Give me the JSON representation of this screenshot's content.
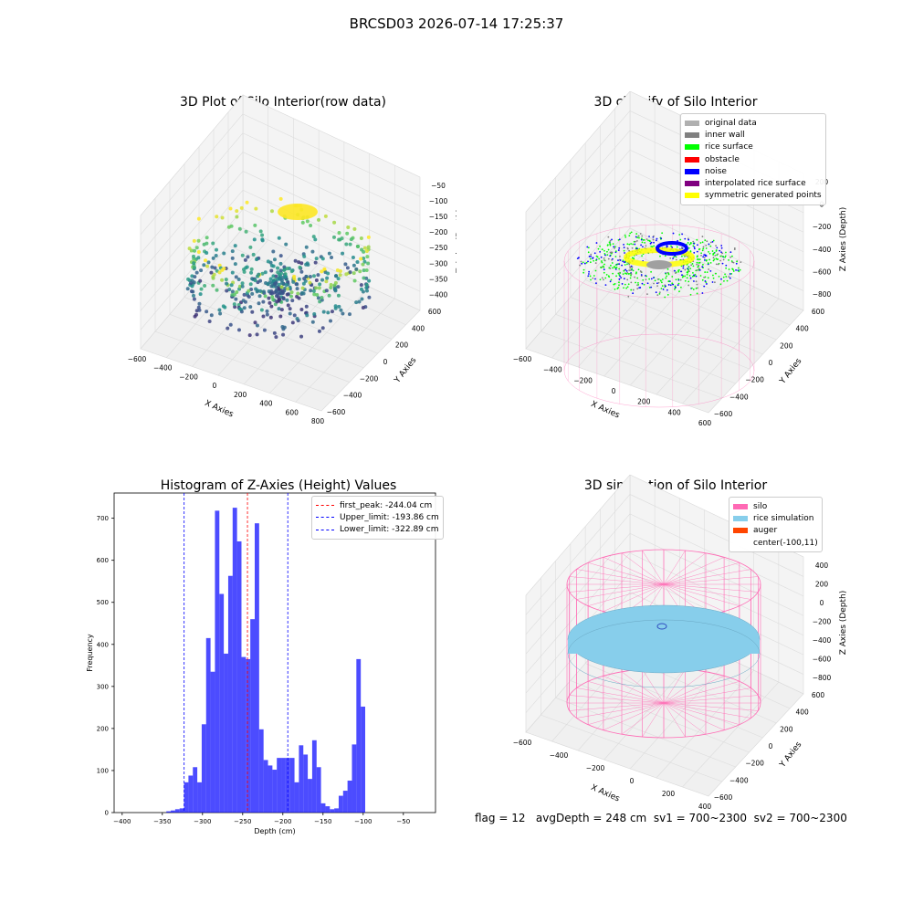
{
  "suptitle": "BRCSD03 2026-07-14 17:25:37",
  "status_text": "flag = 12   avgDepth = 248 cm  sv1 = 700~2300  sv2 = 700~2300",
  "chart_data": [
    {
      "type": "scatter",
      "title": "3D Plot of Silo Interior(row data)",
      "xlabel": "X Axies",
      "ylabel": "Y Axies",
      "zlabel": "Z Axies (Depth)",
      "x_ticks": [
        "−600",
        "−400",
        "−200",
        "0",
        "200",
        "400",
        "600",
        "800"
      ],
      "y_ticks": [
        "−600",
        "−400",
        "−200",
        "0",
        "200",
        "400",
        "600"
      ],
      "z_ticks": [
        "−50",
        "−100",
        "−150",
        "−200",
        "−250",
        "−300",
        "−350",
        "−400"
      ],
      "colormap": "viridis",
      "points_description_only": true
    },
    {
      "type": "scatter",
      "title": "3D classify of Silo Interior",
      "xlabel": "X Axies",
      "ylabel": "Y Axies",
      "zlabel": "Z Axies (Depth)",
      "x_ticks": [
        "−600",
        "−400",
        "−200",
        "0",
        "200",
        "400",
        "600"
      ],
      "y_ticks": [
        "−600",
        "−400",
        "−200",
        "0",
        "200",
        "400",
        "600"
      ],
      "z_ticks": [
        "200",
        "0",
        "−200",
        "−400",
        "−600",
        "−800"
      ],
      "legend": [
        {
          "label": "original data",
          "color": "#b0b0b0"
        },
        {
          "label": "inner wall",
          "color": "#808080"
        },
        {
          "label": "rice surface",
          "color": "#00ff00"
        },
        {
          "label": "obstacle",
          "color": "#ff0000"
        },
        {
          "label": "noise",
          "color": "#0000ff"
        },
        {
          "label": "interpolated rice surface",
          "color": "#800080"
        },
        {
          "label": "symmetric generated points",
          "color": "#ffff00"
        }
      ]
    },
    {
      "type": "bar",
      "title": "Histogram of Z-Axies (Height) Values",
      "xlabel": "Depth (cm)",
      "ylabel": "Frequency",
      "xlim": [
        -410,
        -10
      ],
      "ylim": [
        0,
        760
      ],
      "x_ticks": [
        -400,
        -350,
        -300,
        -250,
        -200,
        -150,
        -100,
        -50
      ],
      "y_ticks": [
        0,
        100,
        200,
        300,
        400,
        500,
        600,
        700
      ],
      "bin_width": 5.5,
      "bars": [
        {
          "x": -345,
          "value": 3
        },
        {
          "x": -339.5,
          "value": 5
        },
        {
          "x": -334,
          "value": 8
        },
        {
          "x": -328.5,
          "value": 10
        },
        {
          "x": -323,
          "value": 72
        },
        {
          "x": -317.5,
          "value": 88
        },
        {
          "x": -312,
          "value": 108
        },
        {
          "x": -306.5,
          "value": 72
        },
        {
          "x": -301,
          "value": 210
        },
        {
          "x": -295.5,
          "value": 415
        },
        {
          "x": -290,
          "value": 335
        },
        {
          "x": -284.5,
          "value": 718
        },
        {
          "x": -279,
          "value": 520
        },
        {
          "x": -273.5,
          "value": 378
        },
        {
          "x": -268,
          "value": 563
        },
        {
          "x": -262.5,
          "value": 725
        },
        {
          "x": -257,
          "value": 645
        },
        {
          "x": -251.5,
          "value": 370
        },
        {
          "x": -246,
          "value": 365
        },
        {
          "x": -240.5,
          "value": 460
        },
        {
          "x": -235,
          "value": 688
        },
        {
          "x": -229.5,
          "value": 198
        },
        {
          "x": -224,
          "value": 125
        },
        {
          "x": -218.5,
          "value": 112
        },
        {
          "x": -213,
          "value": 102
        },
        {
          "x": -207.5,
          "value": 130
        },
        {
          "x": -202,
          "value": 130
        },
        {
          "x": -196.5,
          "value": 130
        },
        {
          "x": -191,
          "value": 130
        },
        {
          "x": -185.5,
          "value": 72
        },
        {
          "x": -180,
          "value": 160
        },
        {
          "x": -174.5,
          "value": 138
        },
        {
          "x": -169,
          "value": 80
        },
        {
          "x": -163.5,
          "value": 172
        },
        {
          "x": -158,
          "value": 108
        },
        {
          "x": -152.5,
          "value": 22
        },
        {
          "x": -147,
          "value": 15
        },
        {
          "x": -141.5,
          "value": 8
        },
        {
          "x": -136,
          "value": 10
        },
        {
          "x": -130.5,
          "value": 40
        },
        {
          "x": -125,
          "value": 52
        },
        {
          "x": -119.5,
          "value": 76
        },
        {
          "x": -114,
          "value": 162
        },
        {
          "x": -108.5,
          "value": 365
        },
        {
          "x": -103,
          "value": 252
        }
      ],
      "vlines": [
        {
          "label": "first_peak: -244.04 cm",
          "x": -244.04,
          "color": "#ff0000"
        },
        {
          "label": "Upper_limit: -193.86 cm",
          "x": -193.86,
          "color": "#0000ff"
        },
        {
          "label": "Lower_limit: -322.89 cm",
          "x": -322.89,
          "color": "#0000ff"
        }
      ],
      "bar_color": "#0000ff"
    },
    {
      "type": "scatter",
      "title": "3D simulation of Silo Interior",
      "xlabel": "X Axies",
      "ylabel": "Y Axies",
      "zlabel": "Z Axies (Depth)",
      "x_ticks": [
        "−600",
        "−400",
        "−200",
        "0",
        "200",
        "400"
      ],
      "y_ticks": [
        "−600",
        "−400",
        "−200",
        "0",
        "200",
        "400",
        "600"
      ],
      "z_ticks": [
        "400",
        "200",
        "0",
        "−200",
        "−400",
        "−600",
        "−800"
      ],
      "legend": [
        {
          "label": "silo",
          "color": "#ff69b4"
        },
        {
          "label": "rice simulation",
          "color": "#87ceeb"
        },
        {
          "label": "auger",
          "color": "#ff4500"
        },
        {
          "label": "center(-100,11)",
          "color": "#ffffff"
        }
      ]
    }
  ]
}
